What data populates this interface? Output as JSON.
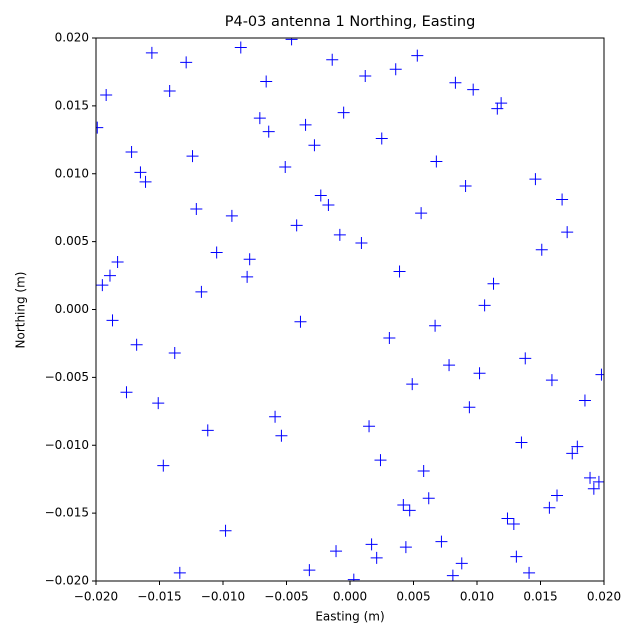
{
  "chart_data": {
    "type": "scatter",
    "title": "P4-03 antenna 1 Northing, Easting",
    "x_label": "Easting (m)",
    "y_label": "Northing (m)",
    "marker": "+",
    "color": "#0000ff",
    "xlim": [
      -0.02,
      0.02
    ],
    "ylim": [
      -0.02,
      0.02
    ],
    "xticks": [
      {
        "value": -0.02,
        "label": "−0.020"
      },
      {
        "value": -0.015,
        "label": "−0.015"
      },
      {
        "value": -0.01,
        "label": "−0.010"
      },
      {
        "value": -0.005,
        "label": "−0.005"
      },
      {
        "value": 0,
        "label": "0.000"
      },
      {
        "value": 0.005,
        "label": "0.005"
      },
      {
        "value": 0.01,
        "label": "0.010"
      },
      {
        "value": 0.015,
        "label": "0.015"
      },
      {
        "value": 0.02,
        "label": "0.020"
      }
    ],
    "yticks": [
      {
        "value": -0.02,
        "label": "−0.020"
      },
      {
        "value": -0.015,
        "label": "−0.015"
      },
      {
        "value": -0.01,
        "label": "−0.010"
      },
      {
        "value": -0.005,
        "label": "−0.005"
      },
      {
        "value": 0,
        "label": "0.000"
      },
      {
        "value": 0.005,
        "label": "0.005"
      },
      {
        "value": 0.01,
        "label": "0.010"
      },
      {
        "value": 0.015,
        "label": "0.015"
      },
      {
        "value": 0.02,
        "label": "0.020"
      }
    ],
    "x": [
      0.0031,
      -0.0124,
      0.0157,
      -0.0042,
      0.0088,
      -0.0183,
      0.0012,
      0.0135,
      -0.0071,
      0.0049,
      -0.0156,
      0.0192,
      -0.0023,
      0.0067,
      -0.0098,
      0.0171,
      -0.0134,
      0.0025,
      0.0113,
      -0.0059,
      0.0146,
      -0.0192,
      0.0078,
      -0.0011,
      0.0039,
      -0.0147,
      0.0185,
      -0.0086,
      0.0056,
      -0.0035,
      0.0124,
      -0.0168,
      0.0009,
      0.0097,
      -0.0112,
      0.0163,
      -0.0051,
      0.0072,
      -0.0195,
      0.0141,
      -0.0017,
      0.0058,
      -0.0129,
      0.0198,
      -0.0064,
      0.0021,
      0.0106,
      -0.0176,
      0.0083,
      -0.0005,
      0.0175,
      -0.0093,
      0.0044,
      -0.0138,
      0.0119,
      -0.0028,
      0.0062,
      -0.0187,
      0.0151,
      0.0003,
      -0.0079,
      0.0129,
      -0.0161,
      0.0036,
      0.0094,
      -0.0046,
      0.0189,
      -0.0117,
      0.0015,
      0.0068,
      -0.0199,
      0.0102,
      -0.0032,
      0.0167,
      -0.0081,
      0.0047,
      -0.0142,
      0.0131,
      -0.0008,
      0.0179,
      0.0053,
      -0.0105,
      0.0024,
      -0.0172,
      0.0138,
      -0.0066,
      0.0091,
      -0.0151,
      0.0196,
      -0.0039,
      0.0017,
      -0.0189,
      0.0116,
      -0.0054,
      0.0081,
      -0.0121,
      0.0159,
      -0.0014,
      0.0042,
      -0.0165
    ],
    "y": [
      -0.0021,
      0.0113,
      -0.0146,
      0.0062,
      -0.0187,
      0.0035,
      0.0172,
      -0.0098,
      0.0141,
      -0.0055,
      0.0189,
      -0.0132,
      0.0084,
      -0.0012,
      -0.0163,
      0.0057,
      -0.0194,
      0.0126,
      0.0019,
      -0.0079,
      0.0096,
      0.0158,
      -0.0041,
      -0.0178,
      0.0028,
      -0.0115,
      -0.0067,
      0.0193,
      0.0071,
      0.0136,
      -0.0154,
      -0.0026,
      0.0049,
      0.0162,
      -0.0089,
      -0.0137,
      0.0105,
      -0.0171,
      0.0018,
      -0.0194,
      0.0077,
      -0.0119,
      0.0182,
      -0.0048,
      0.0131,
      -0.0183,
      0.0003,
      -0.0061,
      0.0167,
      0.0145,
      -0.0106,
      0.0069,
      -0.0175,
      -0.0032,
      0.0152,
      0.0121,
      -0.0139,
      -0.0008,
      0.0044,
      -0.0199,
      0.0037,
      -0.0158,
      0.0094,
      0.0177,
      -0.0072,
      0.0199,
      -0.0124,
      0.0013,
      -0.0086,
      0.0109,
      0.0134,
      -0.0047,
      -0.0192,
      0.0081,
      0.0024,
      -0.0148,
      0.0161,
      -0.0182,
      0.0055,
      -0.0101,
      0.0187,
      0.0042,
      -0.0111,
      0.0116,
      -0.0036,
      0.0168,
      0.0091,
      -0.0069,
      -0.0127,
      -0.0009,
      -0.0173,
      0.0025,
      0.0148,
      -0.0093,
      -0.0196,
      0.0074,
      -0.0052,
      0.0184,
      -0.0144,
      0.0101
    ]
  }
}
